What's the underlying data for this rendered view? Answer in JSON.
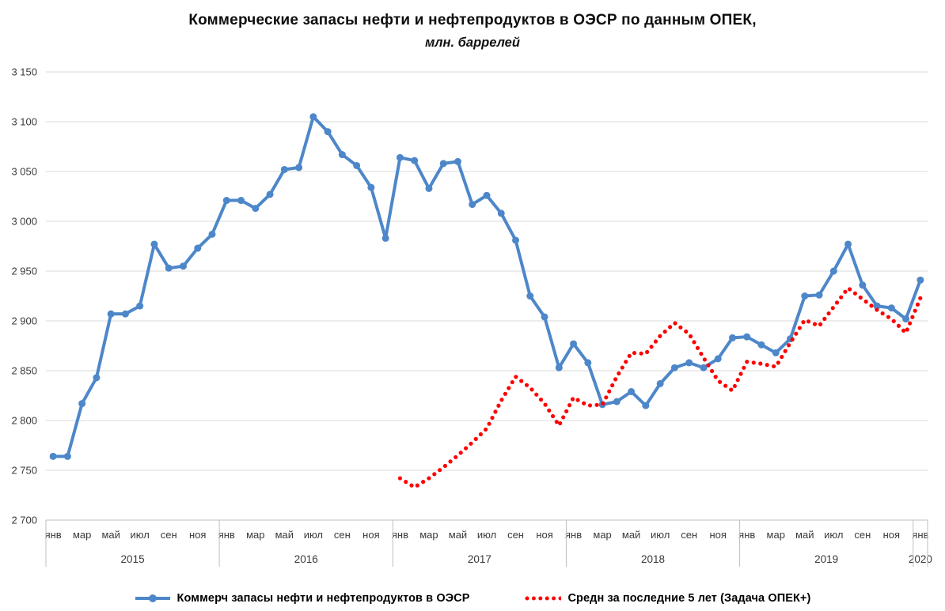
{
  "chart_data": {
    "type": "line",
    "title": "Коммерческие запасы нефти и нефтепродуктов в ОЭСР по данным ОПЕК,",
    "subtitle": "млн. баррелей",
    "x_frequency": "monthly",
    "x_range": "янв 2015 — янв 2020",
    "x_years": [
      "2015",
      "2016",
      "2017",
      "2018",
      "2019"
    ],
    "x_final_year": "2020",
    "x_final_month": "янв",
    "x_tick_months": [
      "янв",
      "мар",
      "май",
      "июл",
      "сен",
      "ноя"
    ],
    "ylim": [
      2700,
      3150
    ],
    "y_step": 50,
    "y_tick_labels": [
      "2 700",
      "2 750",
      "2 800",
      "2 850",
      "2 900",
      "2 950",
      "3 000",
      "3 050",
      "3 100",
      "3 150"
    ],
    "grid": "horizontal",
    "grid_color": "#d9d9d9",
    "axis_color": "#bfbfbf",
    "legend_position": "bottom",
    "series": [
      {
        "id": "oecd-stocks",
        "name": "Коммерч запасы нефти и нефтепродуктов в ОЭСР",
        "color": "#4d87c9",
        "line_style": "solid",
        "markers": true,
        "start_index": 0,
        "start_label": "янв 2015",
        "values": [
          2764,
          2764,
          2817,
          2843,
          2907,
          2907,
          2915,
          2977,
          2953,
          2955,
          2973,
          2987,
          3021,
          3021,
          3013,
          3027,
          3052,
          3054,
          3105,
          3090,
          3067,
          3056,
          3034,
          2983,
          3064,
          3061,
          3033,
          3058,
          3060,
          3017,
          3026,
          3008,
          2981,
          2925,
          2904,
          2853,
          2877,
          2858,
          2816,
          2819,
          2829,
          2815,
          2837,
          2853,
          2858,
          2853,
          2862,
          2883,
          2884,
          2876,
          2868,
          2882,
          2925,
          2926,
          2950,
          2977,
          2936,
          2915,
          2913,
          2902,
          2941
        ]
      },
      {
        "id": "five-year-average",
        "name": "Средн за последние 5 лет (Задача ОПЕК+)",
        "color": "#ff0000",
        "line_style": "dotted",
        "markers": false,
        "start_index": 24,
        "start_label": "янв 2017",
        "values": [
          2742,
          2733,
          2742,
          2753,
          2765,
          2778,
          2792,
          2820,
          2844,
          2833,
          2817,
          2795,
          2823,
          2815,
          2816,
          2844,
          2868,
          2867,
          2885,
          2898,
          2887,
          2863,
          2840,
          2830,
          2859,
          2857,
          2854,
          2878,
          2901,
          2895,
          2914,
          2933,
          2922,
          2911,
          2902,
          2888,
          2923
        ]
      }
    ]
  }
}
